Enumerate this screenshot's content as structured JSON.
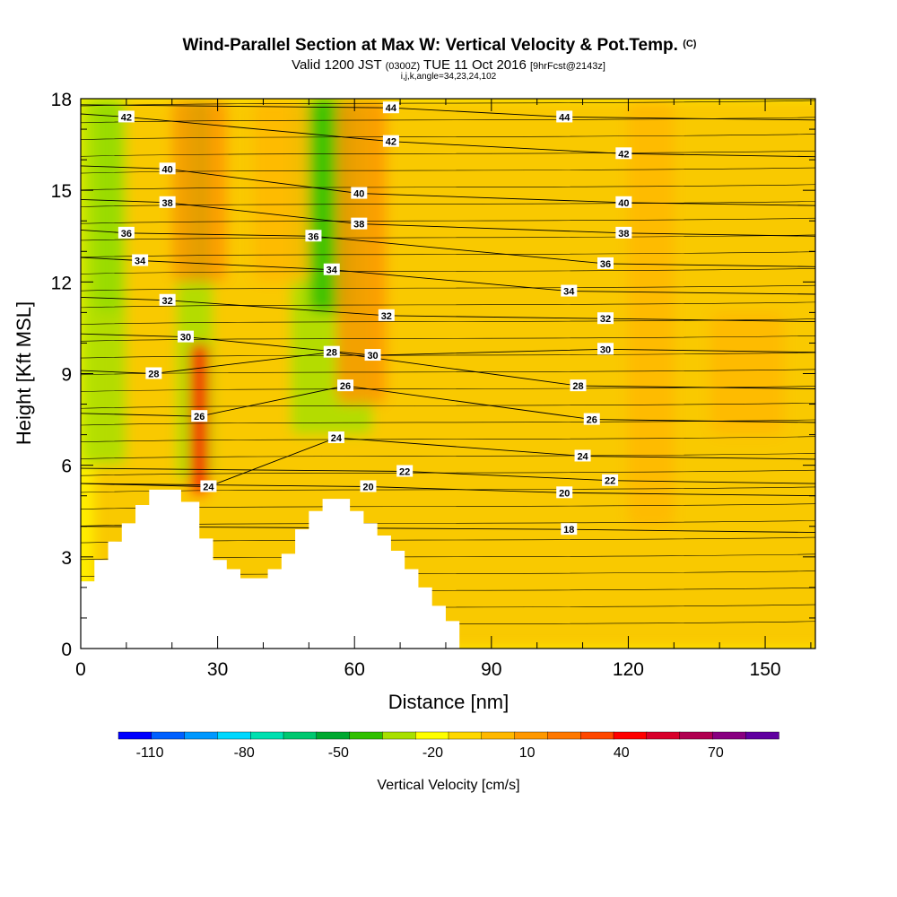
{
  "chart_data": {
    "type": "heatmap",
    "title": "Wind-Parallel Section at Max W: Vertical Velocity & Pot.Temp.",
    "title_mark": "(C)",
    "subtitle": {
      "valid_prefix": "Valid 1200 JST",
      "utc": "(0300Z)",
      "date": "TUE 11 Oct 2016",
      "forecast": "[9hrFcst@2143z]"
    },
    "subtitle2": "i,j,k,angle=34,23,24,102",
    "xlabel": "Distance [nm]",
    "ylabel": "Height [Kft MSL]",
    "xlim": [
      0,
      161
    ],
    "ylim": [
      0,
      18
    ],
    "x_ticks": [
      "0",
      "30",
      "60",
      "90",
      "120",
      "150"
    ],
    "x_tick_values": [
      0,
      30,
      60,
      90,
      120,
      150
    ],
    "y_ticks": [
      "0",
      "3",
      "6",
      "9",
      "12",
      "15",
      "18"
    ],
    "y_tick_values": [
      0,
      3,
      6,
      9,
      12,
      15,
      18
    ],
    "colorbar": {
      "label": "Vertical Velocity [cm/s]",
      "tick_labels": [
        "-110",
        "-80",
        "-50",
        "-20",
        "10",
        "40",
        "70"
      ],
      "tick_values": [
        -110,
        -80,
        -50,
        -20,
        10,
        40,
        70
      ],
      "range": [
        -120,
        90
      ],
      "colors": [
        "#0000ff",
        "#0060ff",
        "#0098ff",
        "#00d8ff",
        "#00e0b0",
        "#00c870",
        "#00a830",
        "#30c000",
        "#a8e000",
        "#ffff00",
        "#ffd800",
        "#ffb800",
        "#ff9800",
        "#ff7800",
        "#ff4800",
        "#ff0000",
        "#d8002a",
        "#b00050",
        "#880080",
        "#6000a0"
      ]
    },
    "series": [
      {
        "name": "Vertical Velocity",
        "field": "w",
        "background": "#ffee00",
        "regions": [
          {
            "level": 25,
            "color": "#f8c200",
            "x": 3,
            "y": 0,
            "w": 161,
            "h": 18
          },
          {
            "level": -30,
            "color": "#30c000",
            "x": 3,
            "y": 11,
            "w": 6,
            "h": 7
          },
          {
            "level": -20,
            "color": "#a8e000",
            "x": 0,
            "y": 6,
            "w": 10,
            "h": 12
          },
          {
            "level": -20,
            "color": "#a8e000",
            "x": 21,
            "y": 5.5,
            "w": 8,
            "h": 12.5
          },
          {
            "level": -30,
            "color": "#30c000",
            "x": 24,
            "y": 12,
            "w": 4,
            "h": 6
          },
          {
            "level": -20,
            "color": "#a8e000",
            "x": 46,
            "y": 7,
            "w": 18,
            "h": 11
          },
          {
            "level": -30,
            "color": "#30c000",
            "x": 50,
            "y": 11,
            "w": 10,
            "h": 7
          },
          {
            "level": 30,
            "color": "#ff9800",
            "x": 20,
            "y": 12,
            "w": 12,
            "h": 6
          },
          {
            "level": 50,
            "color": "#ff0000",
            "x": 24,
            "y": 5,
            "w": 4,
            "h": 5
          },
          {
            "level": 30,
            "color": "#ff9800",
            "x": 56,
            "y": 8,
            "w": 11,
            "h": 10
          },
          {
            "level": 20,
            "color": "#ffb800",
            "x": 38,
            "y": 12,
            "w": 12,
            "h": 6
          },
          {
            "level": 20,
            "color": "#ffb800",
            "x": 120,
            "y": 4,
            "w": 10,
            "h": 14
          },
          {
            "level": 20,
            "color": "#ffb800",
            "x": 138,
            "y": 7,
            "w": 16,
            "h": 4
          }
        ]
      },
      {
        "name": "Pot.Temp.",
        "field": "theta",
        "contour_labels": [
          {
            "text": "42",
            "x": 10,
            "y": 17.4
          },
          {
            "text": "40",
            "x": 19,
            "y": 15.7
          },
          {
            "text": "38",
            "x": 19,
            "y": 14.6
          },
          {
            "text": "36",
            "x": 10,
            "y": 13.6
          },
          {
            "text": "34",
            "x": 13,
            "y": 12.7
          },
          {
            "text": "32",
            "x": 19,
            "y": 11.4
          },
          {
            "text": "30",
            "x": 23,
            "y": 10.2
          },
          {
            "text": "28",
            "x": 16,
            "y": 9.0
          },
          {
            "text": "26",
            "x": 26,
            "y": 7.6
          },
          {
            "text": "24",
            "x": 28,
            "y": 5.3
          },
          {
            "text": "44",
            "x": 68,
            "y": 17.7
          },
          {
            "text": "42",
            "x": 68,
            "y": 16.6
          },
          {
            "text": "40",
            "x": 61,
            "y": 14.9
          },
          {
            "text": "38",
            "x": 61,
            "y": 13.9
          },
          {
            "text": "36",
            "x": 51,
            "y": 13.5
          },
          {
            "text": "34",
            "x": 55,
            "y": 12.4
          },
          {
            "text": "32",
            "x": 67,
            "y": 10.9
          },
          {
            "text": "30",
            "x": 64,
            "y": 9.6
          },
          {
            "text": "28",
            "x": 55,
            "y": 9.7
          },
          {
            "text": "26",
            "x": 58,
            "y": 8.6
          },
          {
            "text": "24",
            "x": 56,
            "y": 6.9
          },
          {
            "text": "22",
            "x": 71,
            "y": 5.8
          },
          {
            "text": "20",
            "x": 63,
            "y": 5.3
          },
          {
            "text": "44",
            "x": 106,
            "y": 17.4
          },
          {
            "text": "42",
            "x": 119,
            "y": 16.2
          },
          {
            "text": "40",
            "x": 119,
            "y": 14.6
          },
          {
            "text": "38",
            "x": 119,
            "y": 13.6
          },
          {
            "text": "36",
            "x": 115,
            "y": 12.6
          },
          {
            "text": "34",
            "x": 107,
            "y": 11.7
          },
          {
            "text": "32",
            "x": 115,
            "y": 10.8
          },
          {
            "text": "30",
            "x": 115,
            "y": 9.8
          },
          {
            "text": "28",
            "x": 109,
            "y": 8.6
          },
          {
            "text": "26",
            "x": 112,
            "y": 7.5
          },
          {
            "text": "24",
            "x": 110,
            "y": 6.3
          },
          {
            "text": "22",
            "x": 116,
            "y": 5.5
          },
          {
            "text": "20",
            "x": 106,
            "y": 5.1
          },
          {
            "text": "18",
            "x": 107,
            "y": 3.9
          }
        ]
      }
    ],
    "terrain": [
      [
        0,
        2.2
      ],
      [
        3,
        2.2
      ],
      [
        3,
        2.9
      ],
      [
        6,
        2.9
      ],
      [
        6,
        3.5
      ],
      [
        9,
        3.5
      ],
      [
        9,
        4.1
      ],
      [
        12,
        4.1
      ],
      [
        12,
        4.7
      ],
      [
        15,
        4.7
      ],
      [
        15,
        5.2
      ],
      [
        18,
        5.2
      ],
      [
        22,
        5.2
      ],
      [
        22,
        4.8
      ],
      [
        26,
        4.8
      ],
      [
        26,
        3.6
      ],
      [
        29,
        3.6
      ],
      [
        29,
        2.9
      ],
      [
        32,
        2.9
      ],
      [
        32,
        2.6
      ],
      [
        35,
        2.6
      ],
      [
        35,
        2.3
      ],
      [
        41,
        2.3
      ],
      [
        41,
        2.6
      ],
      [
        44,
        2.6
      ],
      [
        44,
        3.1
      ],
      [
        47,
        3.1
      ],
      [
        47,
        3.9
      ],
      [
        50,
        3.9
      ],
      [
        50,
        4.5
      ],
      [
        53,
        4.5
      ],
      [
        53,
        4.9
      ],
      [
        59,
        4.9
      ],
      [
        59,
        4.5
      ],
      [
        62,
        4.5
      ],
      [
        62,
        4.1
      ],
      [
        65,
        4.1
      ],
      [
        65,
        3.7
      ],
      [
        68,
        3.7
      ],
      [
        68,
        3.2
      ],
      [
        71,
        3.2
      ],
      [
        71,
        2.6
      ],
      [
        74,
        2.6
      ],
      [
        74,
        2.0
      ],
      [
        77,
        2.0
      ],
      [
        77,
        1.4
      ],
      [
        80,
        1.4
      ],
      [
        80,
        0.9
      ],
      [
        83,
        0.9
      ],
      [
        83,
        0.4
      ]
    ]
  }
}
